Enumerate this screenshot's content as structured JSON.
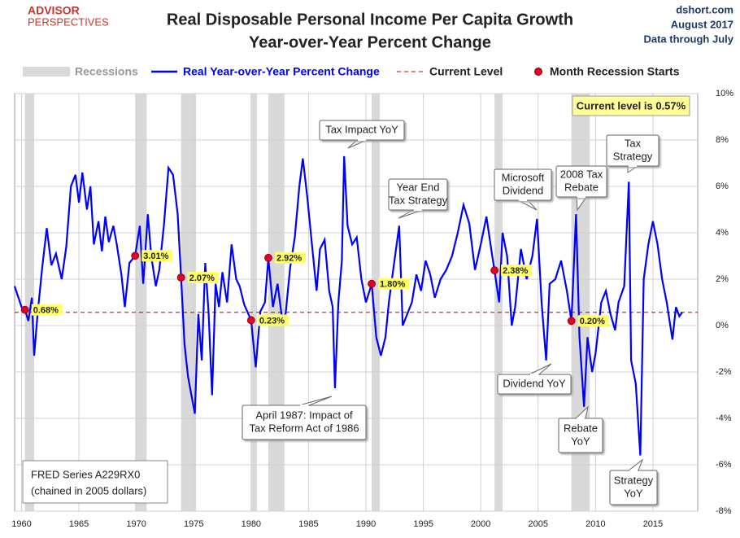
{
  "chart_data": {
    "type": "line",
    "logo": [
      "ADVISOR",
      "PERSPECTIVES"
    ],
    "title": "Real Disposable Personal Income Per Capita Growth",
    "subtitle": "Year-over-Year Percent Change",
    "source": [
      "dshort.com",
      "August 2017",
      "Data through July"
    ],
    "note": [
      "FRED Series A229RX0",
      "(chained in 2005 dollars)"
    ],
    "xlim": [
      1959.4,
      2018.9
    ],
    "ylim": [
      -8,
      10
    ],
    "xticks": [
      1960,
      1965,
      1970,
      1975,
      1980,
      1985,
      1990,
      1995,
      2000,
      2005,
      2010,
      2015
    ],
    "yticks": [
      {
        "value": -8,
        "label": "-8%"
      },
      {
        "value": -6,
        "label": "-6%"
      },
      {
        "value": -4,
        "label": "-4%"
      },
      {
        "value": -2,
        "label": "-2%"
      },
      {
        "value": 0,
        "label": "0%"
      },
      {
        "value": 2,
        "label": "2%"
      },
      {
        "value": 4,
        "label": "4%"
      },
      {
        "value": 6,
        "label": "6%"
      },
      {
        "value": 8,
        "label": "8%"
      },
      {
        "value": 10,
        "label": "10%"
      }
    ],
    "grid": true,
    "recessions": {
      "name": "Recessions",
      "color": "#d9d9d9",
      "spans": [
        [
          1960.3,
          1961.1
        ],
        [
          1969.9,
          1970.9
        ],
        [
          1973.9,
          1975.2
        ],
        [
          1980.0,
          1980.5
        ],
        [
          1981.5,
          1982.9
        ],
        [
          1990.5,
          1991.2
        ],
        [
          2001.2,
          2001.9
        ],
        [
          2007.9,
          2009.5
        ]
      ]
    },
    "x": [
      1959.4,
      1960.0,
      1960.3,
      1960.6,
      1960.9,
      1961.1,
      1961.4,
      1961.8,
      1962.2,
      1962.6,
      1963.0,
      1963.5,
      1963.9,
      1964.3,
      1964.7,
      1965.0,
      1965.3,
      1965.7,
      1966.0,
      1966.3,
      1966.7,
      1967.0,
      1967.3,
      1967.6,
      1968.0,
      1968.3,
      1968.7,
      1969.0,
      1969.4,
      1969.9,
      1970.3,
      1970.6,
      1971.0,
      1971.3,
      1971.7,
      1972.0,
      1972.4,
      1972.8,
      1973.2,
      1973.6,
      1973.9,
      1974.2,
      1974.5,
      1974.8,
      1975.1,
      1975.4,
      1975.7,
      1976.0,
      1976.3,
      1976.6,
      1976.9,
      1977.2,
      1977.5,
      1977.9,
      1978.3,
      1978.7,
      1979.0,
      1979.4,
      1980.0,
      1980.4,
      1980.8,
      1981.2,
      1981.5,
      1981.9,
      1982.3,
      1982.7,
      1983.0,
      1983.4,
      1983.8,
      1984.2,
      1984.5,
      1984.9,
      1985.3,
      1985.7,
      1986.0,
      1986.4,
      1986.8,
      1987.1,
      1987.3,
      1987.6,
      1987.9,
      1988.1,
      1988.4,
      1988.8,
      1989.2,
      1989.6,
      1990.0,
      1990.5,
      1990.9,
      1991.3,
      1991.7,
      1992.0,
      1992.4,
      1992.9,
      1993.2,
      1993.6,
      1994.0,
      1994.4,
      1994.8,
      1995.2,
      1995.6,
      1996.0,
      1996.5,
      1997.0,
      1997.5,
      1998.0,
      1998.5,
      1999.0,
      1999.5,
      2000.0,
      2000.5,
      2001.0,
      2001.2,
      2001.6,
      2001.9,
      2002.3,
      2002.7,
      2003.0,
      2003.5,
      2004.0,
      2004.5,
      2004.9,
      2005.3,
      2005.7,
      2006.0,
      2006.5,
      2007.0,
      2007.5,
      2007.9,
      2008.3,
      2008.6,
      2009.0,
      2009.3,
      2009.7,
      2010.0,
      2010.5,
      2010.9,
      2011.3,
      2011.7,
      2012.0,
      2012.5,
      2012.9,
      2013.1,
      2013.5,
      2013.9,
      2014.2,
      2014.6,
      2015.0,
      2015.4,
      2015.8,
      2016.2,
      2016.7,
      2017.0,
      2017.3,
      2017.55
    ],
    "series": [
      {
        "name": "Real Year-over-Year Percent Change",
        "color": "#0000ff",
        "values": [
          1.7,
          0.8,
          0.68,
          0.2,
          1.2,
          -1.3,
          0.5,
          2.5,
          4.2,
          2.6,
          3.1,
          2.0,
          3.4,
          6.0,
          6.5,
          5.3,
          6.6,
          5.0,
          6.0,
          3.5,
          4.5,
          3.2,
          4.7,
          3.6,
          4.3,
          3.5,
          2.2,
          0.8,
          2.7,
          3.01,
          4.3,
          1.8,
          4.8,
          3.0,
          1.7,
          2.4,
          4.3,
          6.8,
          6.5,
          4.8,
          2.07,
          -0.8,
          -2.2,
          -3.0,
          -3.8,
          0.5,
          -1.5,
          2.7,
          0.5,
          -3.0,
          1.8,
          0.8,
          2.3,
          1.0,
          3.5,
          2.0,
          1.7,
          0.9,
          0.23,
          -1.8,
          0.6,
          1.0,
          2.92,
          0.8,
          1.8,
          0.3,
          0.5,
          2.5,
          3.8,
          6.0,
          7.2,
          5.5,
          3.5,
          1.5,
          3.3,
          3.7,
          1.5,
          0.8,
          -2.7,
          1.0,
          2.8,
          7.3,
          4.3,
          3.5,
          3.8,
          2.0,
          1.0,
          1.8,
          -0.5,
          -1.3,
          -0.5,
          1.0,
          2.5,
          4.3,
          0.0,
          0.5,
          1.0,
          2.2,
          1.5,
          2.8,
          2.2,
          1.2,
          2.0,
          2.4,
          3.0,
          4.0,
          5.2,
          4.4,
          2.4,
          3.5,
          4.7,
          3.0,
          2.38,
          1.0,
          4.0,
          3.0,
          0.0,
          0.8,
          3.3,
          2.0,
          3.0,
          4.6,
          1.0,
          -1.5,
          1.8,
          2.0,
          2.8,
          1.5,
          0.2,
          4.8,
          -0.5,
          -3.5,
          -0.5,
          -2.0,
          -1.2,
          1.0,
          1.5,
          0.5,
          -0.2,
          1.0,
          1.7,
          6.2,
          -1.5,
          -2.5,
          -5.6,
          2.0,
          3.5,
          4.5,
          3.5,
          2.0,
          1.0,
          -0.6,
          0.8,
          0.4,
          0.57
        ]
      }
    ],
    "current_level": {
      "name": "Current Level",
      "value": 0.57,
      "color": "#c00000",
      "label": "Current level is 0.57%"
    },
    "recession_starts": {
      "name": "Month Recession Starts",
      "color": "#e0002a",
      "x": [
        1960.3,
        1969.9,
        1973.9,
        1980.0,
        1981.5,
        1990.5,
        2001.2,
        2007.9
      ],
      "values": [
        0.68,
        3.01,
        2.07,
        0.23,
        2.92,
        1.8,
        2.38,
        0.2
      ],
      "value_labels": [
        "0.68%",
        "3.01%",
        "2.07%",
        "0.23%",
        "2.92%",
        "1.80%",
        "2.38%",
        "0.20%"
      ]
    },
    "annotations": [
      [
        "Tax Impact YoY"
      ],
      [
        "Year End",
        "Tax Strategy"
      ],
      [
        "Microsoft",
        "Dividend"
      ],
      [
        "2008 Tax",
        "Rebate"
      ],
      [
        "Tax",
        "Strategy"
      ],
      [
        "April 1987:  Impact of",
        "Tax Reform Act of 1986"
      ],
      [
        "Dividend YoY"
      ],
      [
        "Rebate",
        "YoY"
      ],
      [
        "Strategy",
        "YoY"
      ]
    ]
  }
}
